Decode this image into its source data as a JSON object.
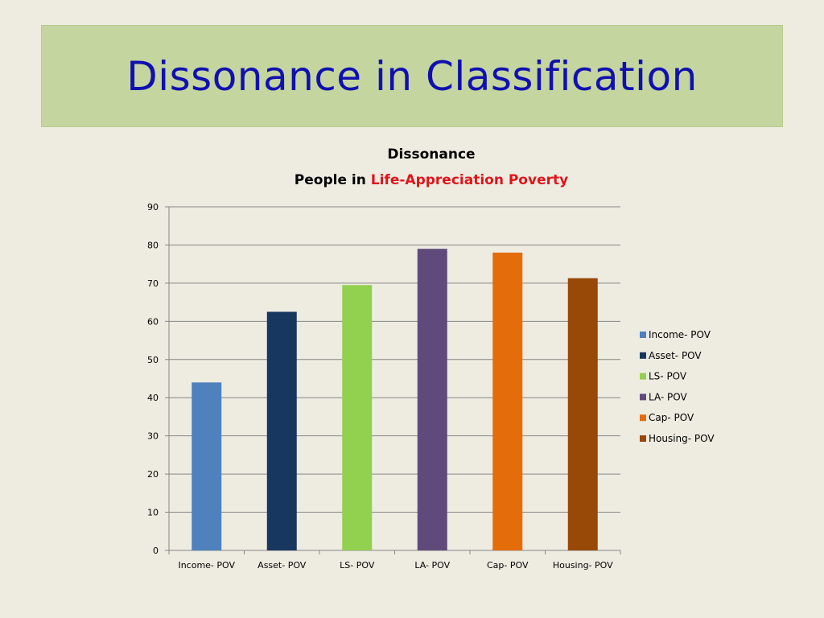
{
  "slide": {
    "title": "Dissonance in Classification"
  },
  "chart_data": {
    "type": "bar",
    "title": "Dissonance",
    "subtitle_prefix": "People in ",
    "subtitle_highlight": "Life-Appreciation Poverty",
    "categories": [
      "Income- POV",
      "Asset- POV",
      "LS- POV",
      "LA- POV",
      "Cap- POV",
      "Housing- POV"
    ],
    "values": [
      44,
      62.5,
      69.5,
      79,
      78,
      71.3
    ],
    "colors": [
      "#4F81BD",
      "#17375E",
      "#92D050",
      "#604A7B",
      "#E46C0A",
      "#984807"
    ],
    "ylim": [
      0,
      90
    ],
    "yticks": [
      0,
      10,
      20,
      30,
      40,
      50,
      60,
      70,
      80,
      90
    ],
    "grid": true,
    "legend": "right",
    "xlabel": "",
    "ylabel": ""
  }
}
